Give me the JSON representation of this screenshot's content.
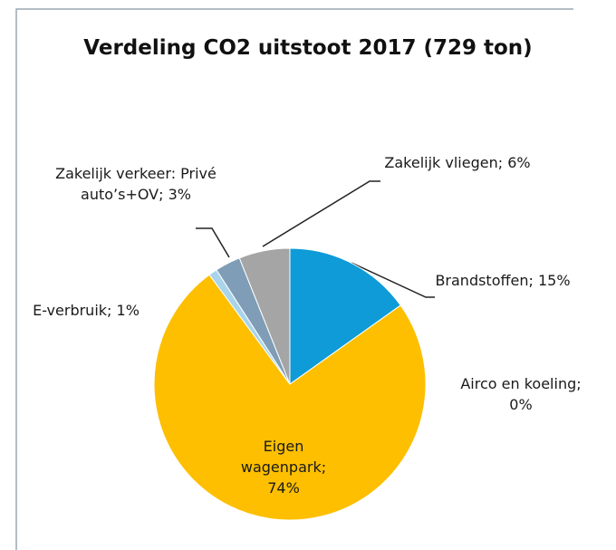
{
  "chart_data": {
    "type": "pie",
    "title": "Verdeling CO2 uitstoot 2017 (729 ton)",
    "categories": [
      "Brandstoffen;",
      "Airco en koeling;",
      "Eigen wagenpark;",
      "E-verbruik;",
      "Zakelijk verkeer: Privé auto’s+OV;",
      "Zakelijk vliegen;"
    ],
    "values": [
      15,
      0,
      74,
      1,
      3,
      6
    ],
    "value_labels": [
      "15%",
      "0%",
      "74%",
      "1%",
      "3%",
      "6%"
    ],
    "colors": [
      "#0e9bd8",
      "#5b9bd5",
      "#fdbf00",
      "#a8d4ec",
      "#7f9db6",
      "#a5a5a5"
    ]
  }
}
